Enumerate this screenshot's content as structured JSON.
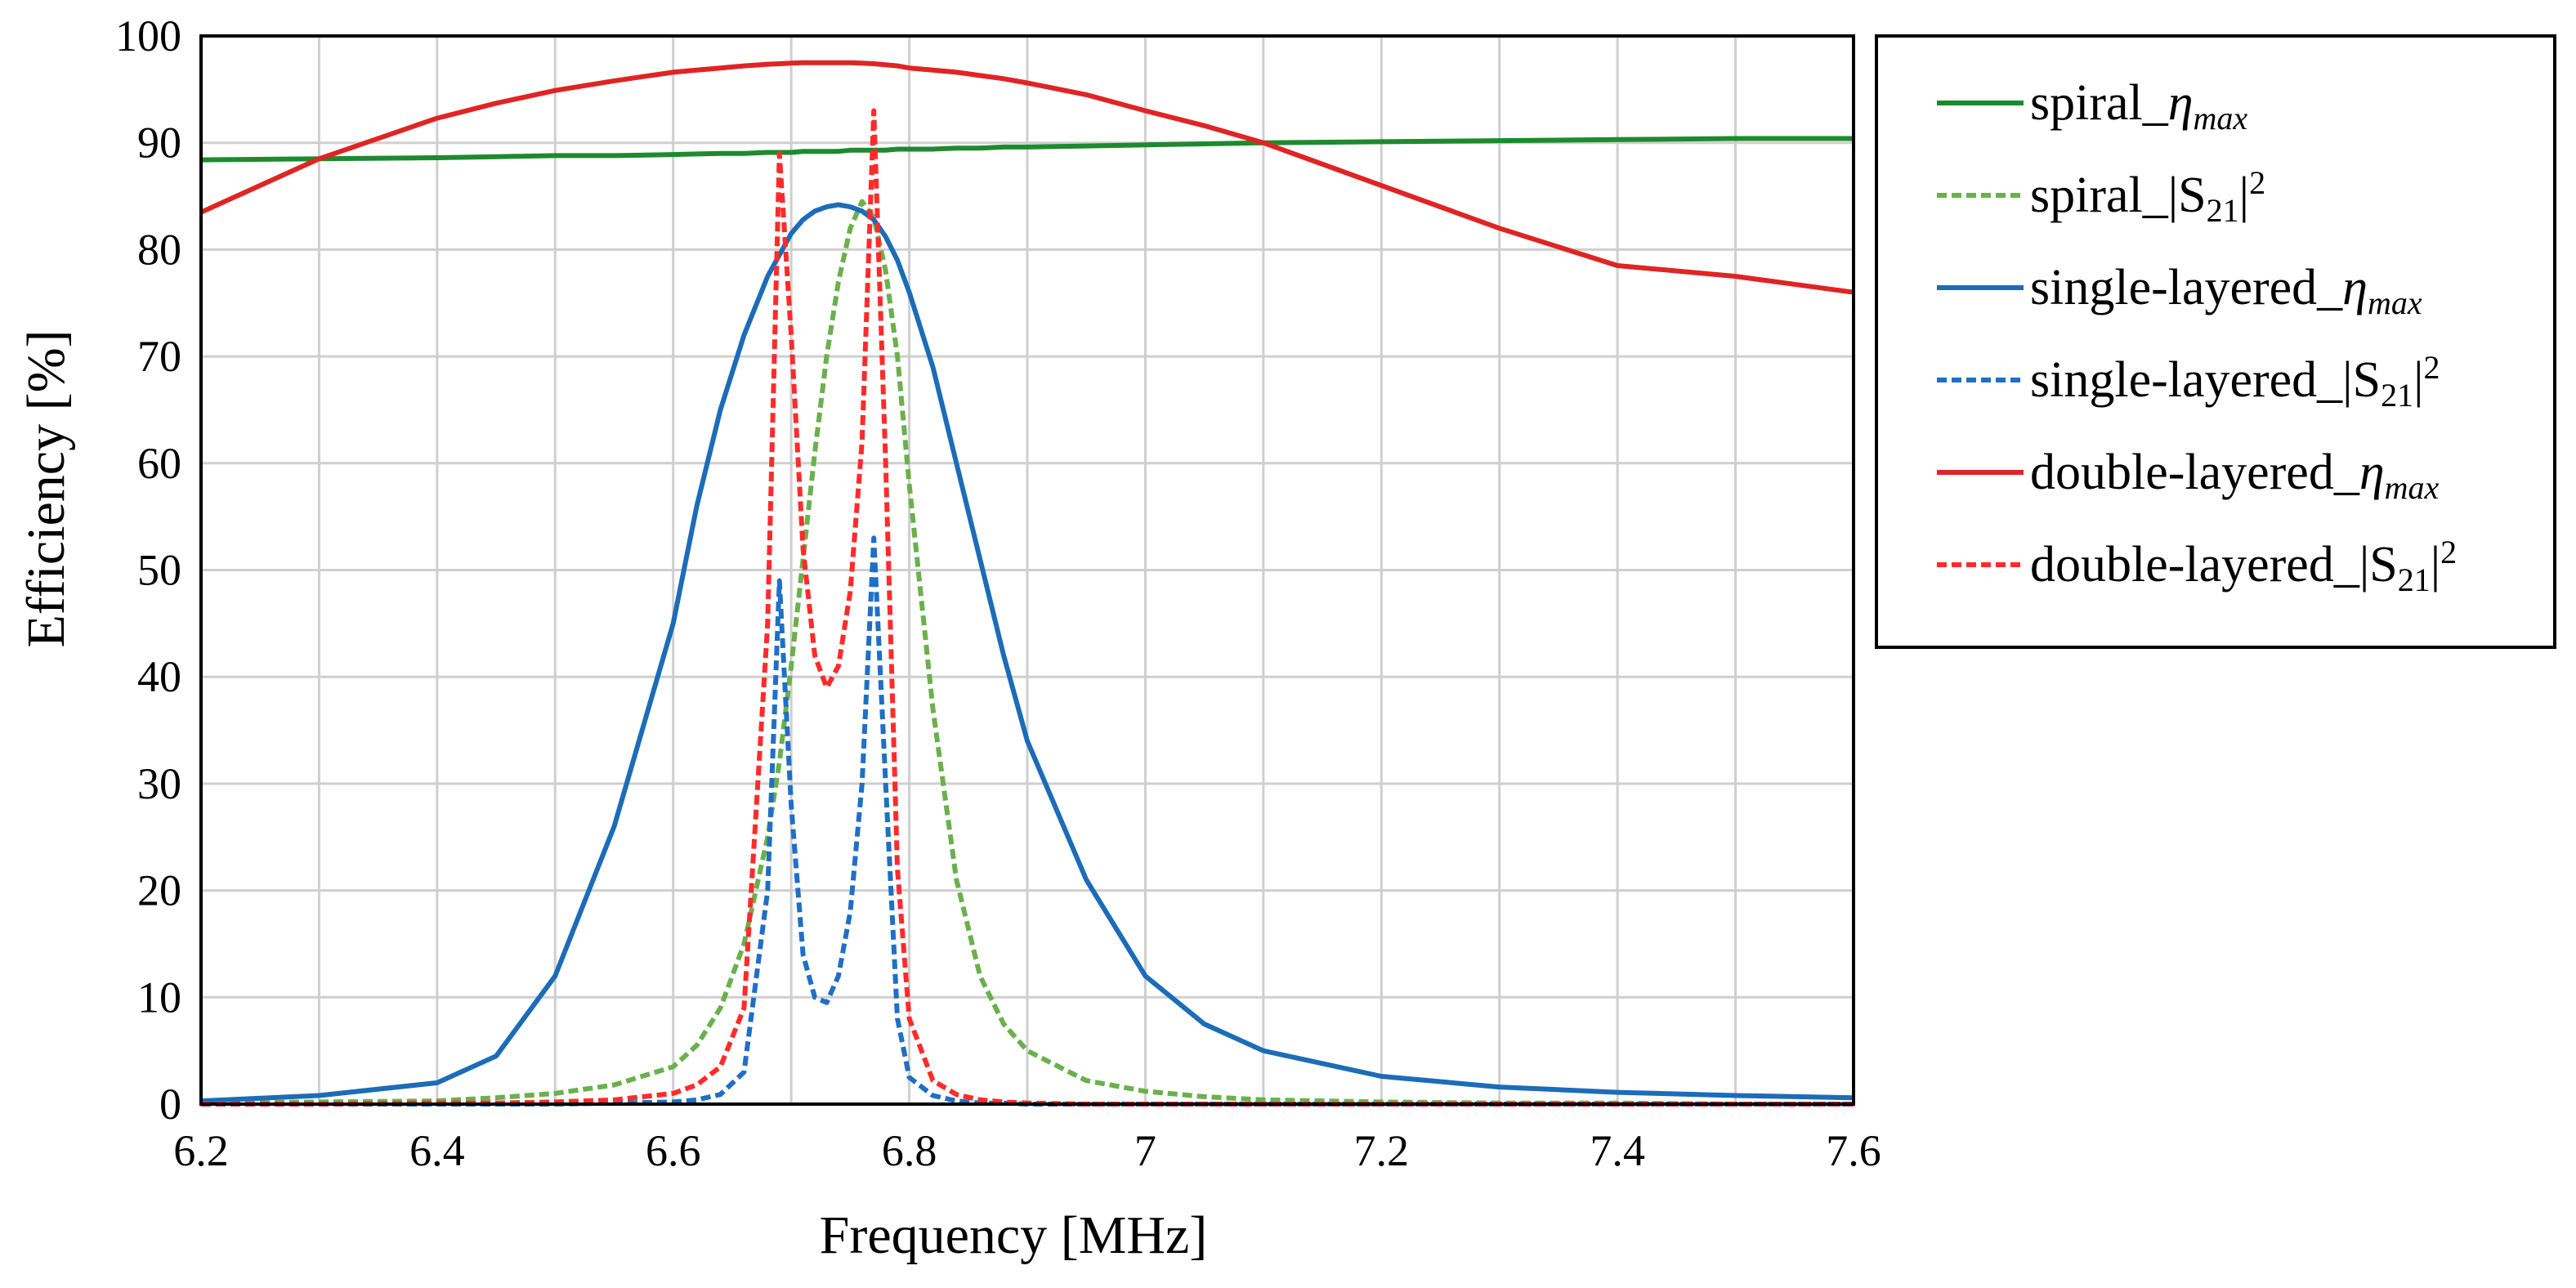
{
  "chart_data": {
    "type": "line",
    "title": "",
    "xlabel": "Frequency [MHz]",
    "ylabel": "Efficiency  [%]",
    "xlim": [
      6.2,
      7.6
    ],
    "ylim": [
      0,
      100
    ],
    "x_ticks": [
      "6.2",
      "6.4",
      "6.6",
      "6.8",
      "7",
      "7.2",
      "7.4",
      "7.6"
    ],
    "x_tick_values": [
      6.2,
      6.4,
      6.6,
      6.8,
      7.0,
      7.2,
      7.4,
      7.6
    ],
    "y_ticks": [
      "0",
      "10",
      "20",
      "30",
      "40",
      "50",
      "60",
      "70",
      "80",
      "90",
      "100"
    ],
    "y_tick_values": [
      0,
      10,
      20,
      30,
      40,
      50,
      60,
      70,
      80,
      90,
      100
    ],
    "x_minor_step": 0.1,
    "grid": true,
    "legend_position": "right",
    "x": [
      6.2,
      6.3,
      6.4,
      6.45,
      6.5,
      6.55,
      6.6,
      6.62,
      6.64,
      6.66,
      6.68,
      6.69,
      6.7,
      6.71,
      6.72,
      6.73,
      6.74,
      6.75,
      6.76,
      6.77,
      6.78,
      6.79,
      6.8,
      6.82,
      6.84,
      6.86,
      6.88,
      6.9,
      6.95,
      7.0,
      7.05,
      7.1,
      7.2,
      7.3,
      7.4,
      7.5,
      7.6
    ],
    "series": [
      {
        "name": "spiral_ηmax",
        "color": "#1e8a2e",
        "dash": "solid",
        "values": [
          88.4,
          88.5,
          88.6,
          88.7,
          88.8,
          88.8,
          88.9,
          88.95,
          89.0,
          89.0,
          89.1,
          89.1,
          89.1,
          89.2,
          89.2,
          89.2,
          89.2,
          89.3,
          89.3,
          89.3,
          89.3,
          89.4,
          89.4,
          89.4,
          89.5,
          89.5,
          89.6,
          89.6,
          89.7,
          89.8,
          89.9,
          90.0,
          90.1,
          90.2,
          90.3,
          90.4,
          90.4
        ]
      },
      {
        "name": "spiral_|S21|²",
        "color": "#6ab04c",
        "dash": "dashed",
        "values": [
          0.1,
          0.2,
          0.3,
          0.6,
          1.0,
          1.8,
          3.5,
          5.5,
          9.0,
          15.0,
          25.0,
          32.0,
          41.0,
          51.0,
          61.0,
          70.0,
          77.0,
          82.0,
          84.5,
          83.0,
          78.0,
          70.0,
          58.0,
          37.0,
          21.0,
          12.0,
          7.5,
          5.0,
          2.2,
          1.2,
          0.7,
          0.4,
          0.2,
          0.1,
          0.1,
          0.0,
          0.0
        ]
      },
      {
        "name": "single-layered_ηmax",
        "color": "#1c6cb7",
        "dash": "solid",
        "values": [
          0.3,
          0.8,
          2.0,
          4.5,
          12.0,
          26.0,
          45.0,
          56.0,
          65.0,
          72.0,
          77.5,
          79.5,
          81.5,
          82.8,
          83.6,
          84.0,
          84.2,
          84.0,
          83.6,
          82.8,
          81.2,
          79.0,
          76.0,
          69.0,
          60.0,
          51.0,
          42.0,
          34.0,
          21.0,
          12.0,
          7.5,
          5.0,
          2.6,
          1.6,
          1.1,
          0.8,
          0.6
        ]
      },
      {
        "name": "single-layered_|S21|²",
        "color": "#1f6fc6",
        "dash": "dashed",
        "values": [
          0.0,
          0.0,
          0.0,
          0.0,
          0.0,
          0.1,
          0.2,
          0.4,
          0.9,
          3.0,
          20.0,
          49.0,
          28.0,
          14.0,
          10.0,
          9.5,
          12.0,
          18.0,
          30.0,
          53.0,
          30.0,
          8.0,
          2.5,
          0.8,
          0.3,
          0.1,
          0.1,
          0.0,
          0.0,
          0.0,
          0.0,
          0.0,
          0.0,
          0.0,
          0.0,
          0.0,
          0.0
        ]
      },
      {
        "name": "double-layered_ηmax",
        "color": "#e02424",
        "dash": "solid",
        "values": [
          83.5,
          88.5,
          92.3,
          93.7,
          94.9,
          95.8,
          96.6,
          96.8,
          97.0,
          97.2,
          97.35,
          97.4,
          97.45,
          97.5,
          97.5,
          97.5,
          97.5,
          97.5,
          97.45,
          97.4,
          97.3,
          97.2,
          97.0,
          96.8,
          96.6,
          96.3,
          96.0,
          95.6,
          94.5,
          93.0,
          91.6,
          90.0,
          86.0,
          82.0,
          78.5,
          77.5,
          76.0
        ]
      },
      {
        "name": "double-layered_|S21|²",
        "color": "#ff2b2b",
        "dash": "dashed",
        "values": [
          0.0,
          0.0,
          0.1,
          0.1,
          0.2,
          0.4,
          1.0,
          1.8,
          3.5,
          9.0,
          45.0,
          89.0,
          72.0,
          52.0,
          42.0,
          39.0,
          41.0,
          48.0,
          62.0,
          93.0,
          60.0,
          22.0,
          8.0,
          2.2,
          0.9,
          0.4,
          0.2,
          0.1,
          0.0,
          0.0,
          0.0,
          0.0,
          0.0,
          0.0,
          0.0,
          0.0,
          0.0
        ]
      }
    ]
  },
  "legend": {
    "items": [
      {
        "base": "spiral_",
        "kind": "eta",
        "sub": "max"
      },
      {
        "base": "spiral_|S",
        "kind": "s21",
        "sub": "21",
        "tail": "|",
        "sup": "2"
      },
      {
        "base": "single-layered_",
        "kind": "eta",
        "sub": "max"
      },
      {
        "base": "single-layered_|S",
        "kind": "s21",
        "sub": "21",
        "tail": "|",
        "sup": "2"
      },
      {
        "base": "double-layered_",
        "kind": "eta",
        "sub": "max"
      },
      {
        "base": "double-layered_|S",
        "kind": "s21",
        "sub": "21",
        "tail": "|",
        "sup": "2"
      }
    ],
    "eta_symbol": "η"
  }
}
